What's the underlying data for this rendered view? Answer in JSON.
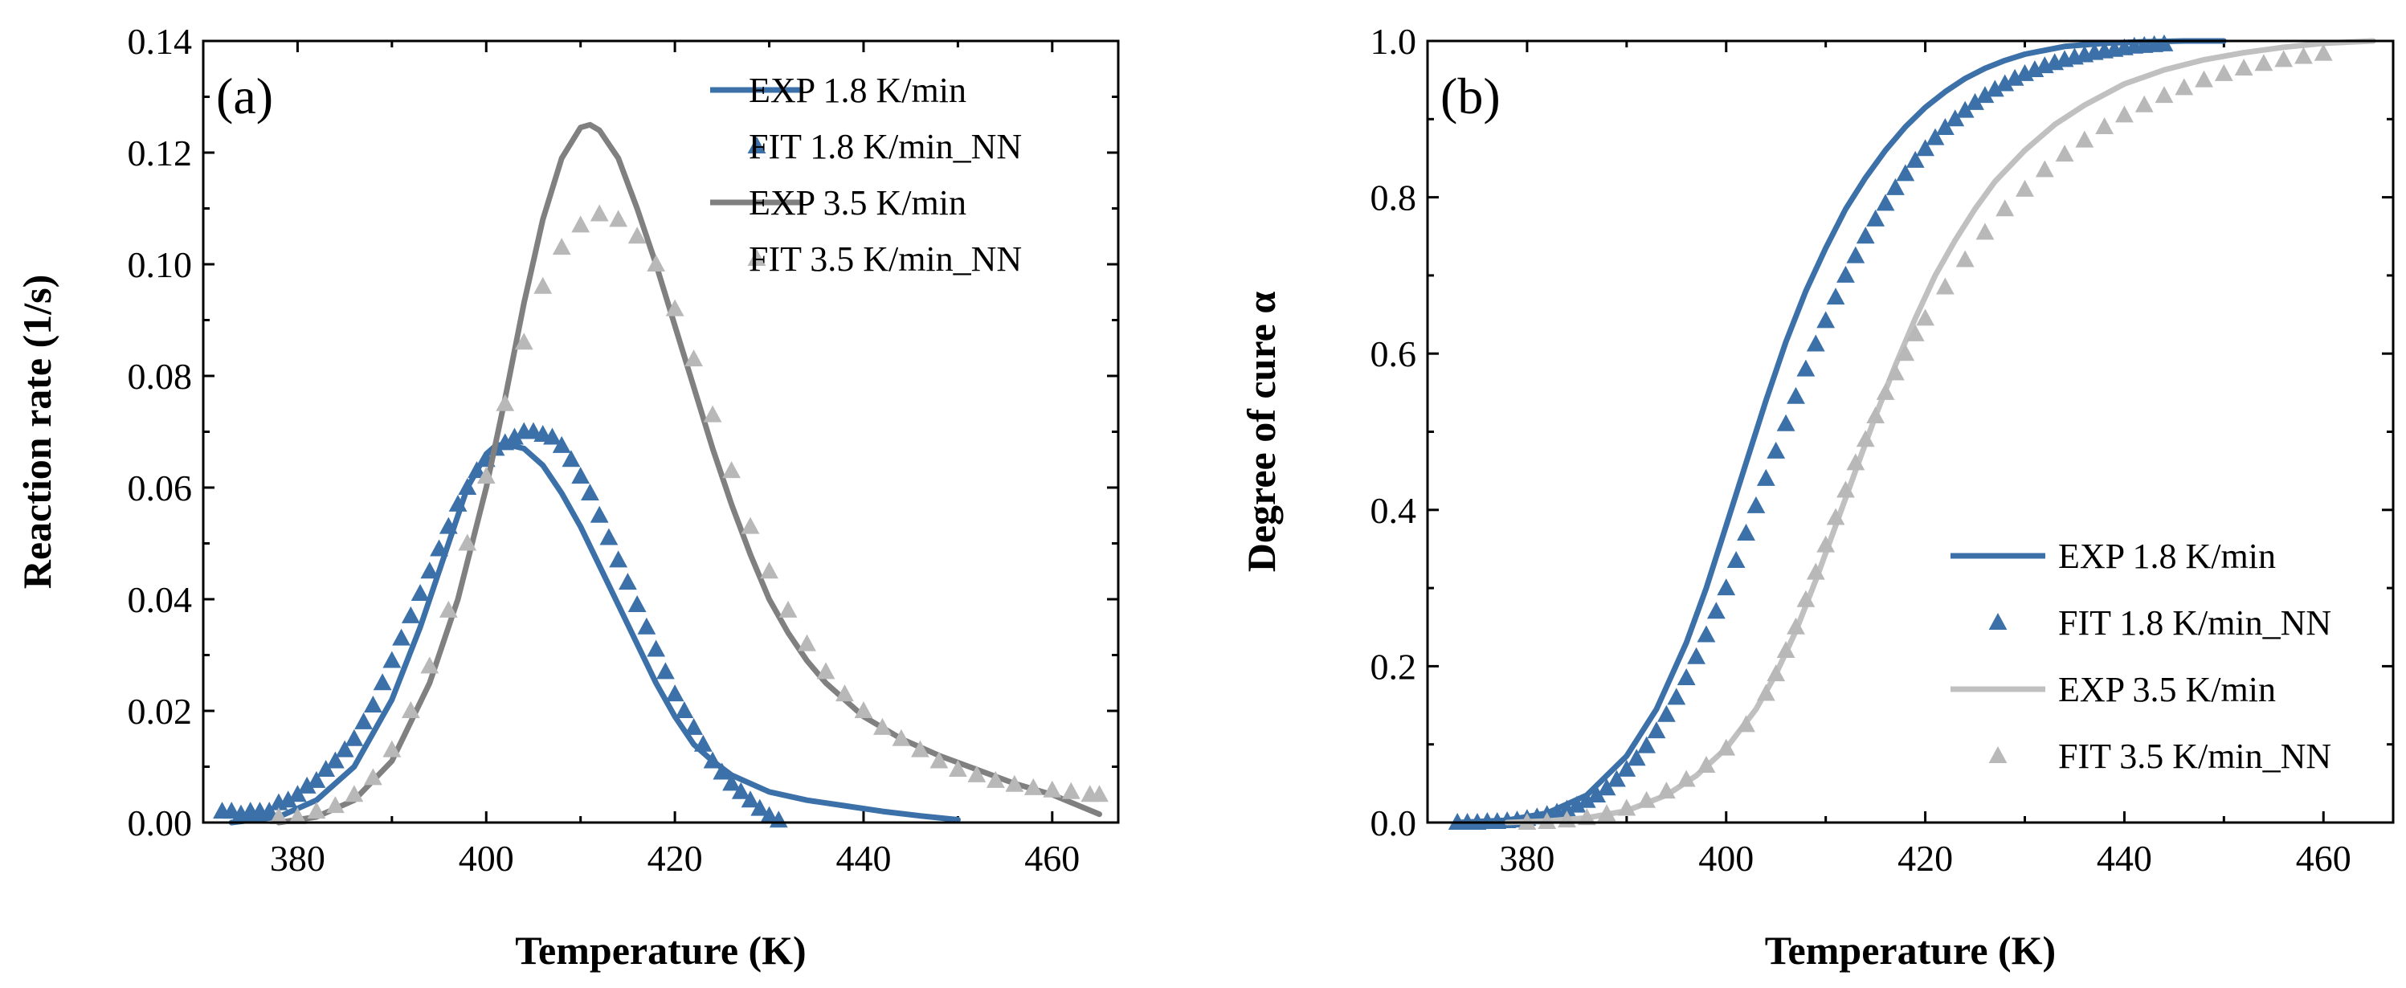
{
  "chart_data": [
    {
      "type": "line",
      "panel_label": "(a)",
      "xlabel": "Temperature (K)",
      "ylabel": "Reaction rate (1/s)",
      "xlim": [
        370,
        467
      ],
      "ylim": [
        0,
        0.14
      ],
      "xticks": [
        "380",
        "400",
        "420",
        "440",
        "460"
      ],
      "yticks": [
        "0.00",
        "0.02",
        "0.04",
        "0.06",
        "0.08",
        "0.10",
        "0.12",
        "0.14"
      ],
      "legend_position": "top-right",
      "series": [
        {
          "name": "EXP 1.8 K/min",
          "style": "line",
          "color": "#3b70a8",
          "x": [
            373,
            378,
            382,
            386,
            390,
            393,
            396,
            398,
            400,
            401,
            402,
            404,
            406,
            408,
            410,
            412,
            414,
            416,
            418,
            420,
            422,
            424,
            426,
            428,
            430,
            434,
            438,
            442,
            446,
            450
          ],
          "y": [
            0.0,
            0.001,
            0.004,
            0.01,
            0.022,
            0.035,
            0.05,
            0.06,
            0.066,
            0.0675,
            0.0678,
            0.067,
            0.064,
            0.059,
            0.053,
            0.046,
            0.039,
            0.032,
            0.025,
            0.019,
            0.014,
            0.011,
            0.0085,
            0.007,
            0.0055,
            0.004,
            0.003,
            0.002,
            0.0012,
            0.0005
          ]
        },
        {
          "name": "FIT 1.8 K/min_NN",
          "style": "marker",
          "color": "#3b70a8",
          "x": [
            372,
            373,
            374,
            375,
            376,
            377,
            378,
            379,
            380,
            381,
            382,
            383,
            384,
            385,
            386,
            387,
            388,
            389,
            390,
            391,
            392,
            393,
            394,
            395,
            396,
            397,
            398,
            399,
            400,
            401,
            402,
            403,
            404,
            405,
            406,
            407,
            408,
            409,
            410,
            411,
            412,
            413,
            414,
            415,
            416,
            417,
            418,
            419,
            420,
            421,
            422,
            423,
            424,
            425,
            426,
            427,
            428,
            429,
            430,
            431
          ],
          "y": [
            0.002,
            0.002,
            0.0015,
            0.002,
            0.002,
            0.002,
            0.0035,
            0.004,
            0.005,
            0.0065,
            0.0075,
            0.0095,
            0.011,
            0.013,
            0.015,
            0.018,
            0.021,
            0.025,
            0.029,
            0.033,
            0.037,
            0.041,
            0.045,
            0.049,
            0.053,
            0.057,
            0.06,
            0.063,
            0.065,
            0.067,
            0.068,
            0.069,
            0.07,
            0.07,
            0.0695,
            0.069,
            0.0675,
            0.065,
            0.062,
            0.059,
            0.055,
            0.051,
            0.047,
            0.043,
            0.039,
            0.035,
            0.031,
            0.027,
            0.023,
            0.02,
            0.017,
            0.014,
            0.011,
            0.009,
            0.007,
            0.0055,
            0.004,
            0.0025,
            0.0012,
            0.0004
          ]
        },
        {
          "name": "EXP 3.5 K/min",
          "style": "line",
          "color": "#808080",
          "x": [
            378,
            382,
            386,
            390,
            394,
            397,
            400,
            402,
            404,
            406,
            408,
            410,
            411,
            412,
            414,
            416,
            418,
            420,
            422,
            424,
            426,
            428,
            430,
            432,
            434,
            436,
            438,
            440,
            444,
            448,
            452,
            456,
            460,
            465
          ],
          "y": [
            0.0,
            0.001,
            0.004,
            0.011,
            0.025,
            0.04,
            0.06,
            0.076,
            0.093,
            0.108,
            0.119,
            0.1245,
            0.125,
            0.124,
            0.119,
            0.11,
            0.1,
            0.089,
            0.078,
            0.067,
            0.057,
            0.048,
            0.04,
            0.034,
            0.029,
            0.025,
            0.022,
            0.019,
            0.015,
            0.012,
            0.0095,
            0.007,
            0.005,
            0.0015
          ]
        },
        {
          "name": "FIT 3.5 K/min_NN",
          "style": "marker",
          "color": "#b8b8b8",
          "x": [
            378,
            380,
            382,
            384,
            386,
            388,
            390,
            392,
            394,
            396,
            398,
            400,
            402,
            404,
            406,
            408,
            410,
            412,
            414,
            416,
            418,
            420,
            422,
            424,
            426,
            428,
            430,
            432,
            434,
            436,
            438,
            440,
            442,
            444,
            446,
            448,
            450,
            452,
            454,
            456,
            458,
            460,
            462,
            464,
            465
          ],
          "y": [
            0.001,
            0.001,
            0.002,
            0.003,
            0.005,
            0.008,
            0.013,
            0.02,
            0.028,
            0.038,
            0.05,
            0.062,
            0.075,
            0.086,
            0.096,
            0.103,
            0.107,
            0.109,
            0.108,
            0.105,
            0.1,
            0.092,
            0.083,
            0.073,
            0.063,
            0.053,
            0.045,
            0.038,
            0.032,
            0.027,
            0.023,
            0.02,
            0.017,
            0.015,
            0.013,
            0.011,
            0.0095,
            0.0085,
            0.0075,
            0.0068,
            0.0062,
            0.0058,
            0.0055,
            0.005,
            0.005
          ]
        }
      ]
    },
    {
      "type": "line",
      "panel_label": "(b)",
      "xlabel": "Temperature (K)",
      "ylabel": "Degree of cure α",
      "xlim": [
        370,
        467
      ],
      "ylim": [
        0,
        1.0
      ],
      "xticks": [
        "380",
        "400",
        "420",
        "440",
        "460"
      ],
      "yticks": [
        "0.0",
        "0.2",
        "0.4",
        "0.6",
        "0.8",
        "1.0"
      ],
      "legend_position": "bottom-right",
      "series": [
        {
          "name": "EXP 1.8 K/min",
          "style": "line",
          "color": "#3b70a8",
          "x": [
            373,
            378,
            382,
            386,
            390,
            393,
            396,
            398,
            400,
            402,
            404,
            406,
            408,
            410,
            412,
            414,
            416,
            418,
            420,
            422,
            424,
            426,
            428,
            430,
            434,
            438,
            442,
            446,
            450
          ],
          "y": [
            0.0,
            0.003,
            0.012,
            0.035,
            0.085,
            0.145,
            0.23,
            0.3,
            0.38,
            0.46,
            0.54,
            0.615,
            0.68,
            0.735,
            0.785,
            0.825,
            0.86,
            0.89,
            0.915,
            0.935,
            0.952,
            0.965,
            0.975,
            0.983,
            0.993,
            0.997,
            0.999,
            1.0,
            1.0
          ]
        },
        {
          "name": "FIT 1.8 K/min_NN",
          "style": "marker",
          "color": "#3b70a8",
          "x": [
            373,
            374,
            375,
            376,
            377,
            378,
            379,
            380,
            381,
            382,
            383,
            384,
            385,
            386,
            387,
            388,
            389,
            390,
            391,
            392,
            393,
            394,
            395,
            396,
            397,
            398,
            399,
            400,
            401,
            402,
            403,
            404,
            405,
            406,
            407,
            408,
            409,
            410,
            411,
            412,
            413,
            414,
            415,
            416,
            417,
            418,
            419,
            420,
            421,
            422,
            423,
            424,
            425,
            426,
            427,
            428,
            429,
            430,
            431,
            432,
            433,
            434,
            435,
            436,
            437,
            438,
            439,
            440,
            441,
            442,
            443,
            444
          ],
          "y": [
            0.0,
            0.0,
            0.0,
            0.001,
            0.001,
            0.002,
            0.003,
            0.005,
            0.007,
            0.01,
            0.013,
            0.017,
            0.022,
            0.028,
            0.035,
            0.044,
            0.055,
            0.068,
            0.082,
            0.098,
            0.117,
            0.138,
            0.16,
            0.185,
            0.212,
            0.24,
            0.27,
            0.3,
            0.335,
            0.37,
            0.405,
            0.44,
            0.475,
            0.51,
            0.545,
            0.58,
            0.612,
            0.642,
            0.672,
            0.7,
            0.725,
            0.75,
            0.772,
            0.792,
            0.812,
            0.83,
            0.847,
            0.862,
            0.876,
            0.889,
            0.9,
            0.911,
            0.921,
            0.93,
            0.938,
            0.945,
            0.952,
            0.958,
            0.963,
            0.968,
            0.972,
            0.976,
            0.979,
            0.982,
            0.985,
            0.987,
            0.989,
            0.991,
            0.993,
            0.994,
            0.995,
            0.996
          ]
        },
        {
          "name": "EXP 3.5 K/min",
          "style": "line",
          "color": "#c0c0c0",
          "x": [
            378,
            382,
            386,
            390,
            394,
            397,
            400,
            403,
            405,
            407,
            409,
            411,
            413,
            415,
            417,
            419,
            421,
            423,
            425,
            427,
            430,
            433,
            436,
            440,
            444,
            448,
            452,
            456,
            460,
            465
          ],
          "y": [
            0.0,
            0.002,
            0.006,
            0.015,
            0.035,
            0.06,
            0.095,
            0.145,
            0.19,
            0.245,
            0.31,
            0.38,
            0.45,
            0.52,
            0.585,
            0.645,
            0.7,
            0.745,
            0.785,
            0.82,
            0.86,
            0.893,
            0.918,
            0.945,
            0.963,
            0.976,
            0.985,
            0.992,
            0.997,
            1.0
          ]
        },
        {
          "name": "FIT 3.5 K/min_NN",
          "style": "marker",
          "color": "#b8b8b8",
          "x": [
            380,
            382,
            384,
            386,
            388,
            390,
            392,
            394,
            396,
            398,
            400,
            402,
            404,
            405,
            406,
            407,
            408,
            409,
            410,
            411,
            412,
            413,
            414,
            415,
            416,
            417,
            418,
            419,
            420,
            422,
            424,
            426,
            428,
            430,
            432,
            434,
            436,
            438,
            440,
            442,
            444,
            446,
            448,
            450,
            452,
            454,
            456,
            458,
            460
          ],
          "y": [
            0.0,
            0.001,
            0.003,
            0.006,
            0.011,
            0.018,
            0.028,
            0.04,
            0.055,
            0.073,
            0.095,
            0.125,
            0.165,
            0.19,
            0.22,
            0.25,
            0.285,
            0.32,
            0.355,
            0.39,
            0.425,
            0.46,
            0.49,
            0.52,
            0.55,
            0.575,
            0.6,
            0.625,
            0.645,
            0.685,
            0.72,
            0.755,
            0.785,
            0.81,
            0.835,
            0.855,
            0.873,
            0.89,
            0.905,
            0.918,
            0.93,
            0.94,
            0.95,
            0.958,
            0.965,
            0.971,
            0.976,
            0.98,
            0.984
          ]
        }
      ]
    }
  ]
}
